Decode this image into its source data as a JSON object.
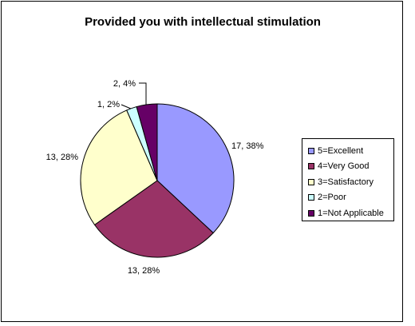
{
  "chart_data": {
    "type": "pie",
    "title": "Provided you with intellectual stimulation",
    "categories": [
      "5=Excellent",
      "4=Very Good",
      "3=Satisfactory",
      "2=Poor",
      "1=Not Applicable"
    ],
    "values": [
      17,
      13,
      13,
      1,
      2
    ],
    "percents": [
      38,
      28,
      28,
      2,
      4
    ],
    "data_labels": [
      "17, 38%",
      "13, 28%",
      "13, 28%",
      "1, 2%",
      "2, 4%"
    ],
    "colors": [
      "#9999FF",
      "#993366",
      "#FFFFCC",
      "#CCFFFF",
      "#660066"
    ],
    "legend": {
      "position": "right",
      "items": [
        "5=Excellent",
        "4=Very Good",
        "3=Satisfactory",
        "2=Poor",
        "1=Not Applicable"
      ]
    }
  }
}
